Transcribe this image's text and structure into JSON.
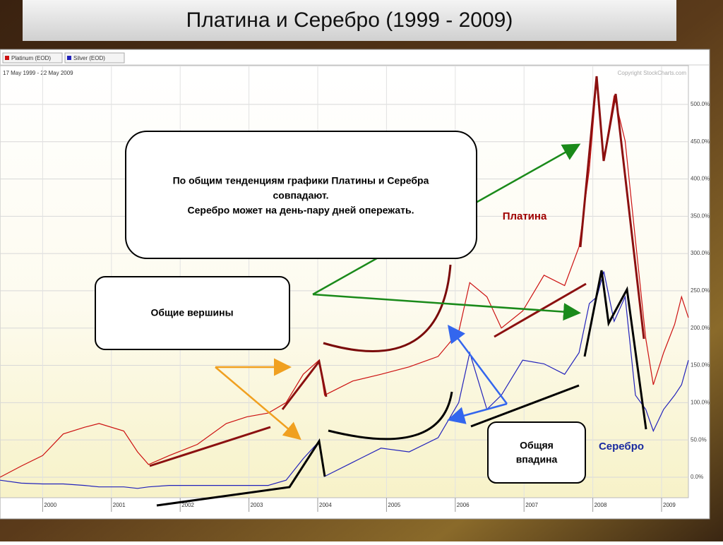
{
  "chart_data": {
    "type": "line",
    "title": "Платина и Серебро (1999 - 2009)",
    "date_range": "17 May 1999 - 22 May 2009",
    "copyright": "Copyright StockCharts.com",
    "legend": "top-left",
    "grid": true,
    "x": [
      1999.38,
      1999.69,
      2000.0,
      2000.3,
      2000.61,
      2000.82,
      2001.18,
      2001.38,
      2001.54,
      2001.84,
      2002.25,
      2002.67,
      2002.97,
      2003.28,
      2003.54,
      2003.79,
      2004.02,
      2004.1,
      2004.51,
      2004.92,
      2005.33,
      2005.75,
      2006.05,
      2006.21,
      2006.46,
      2006.67,
      2006.98,
      2007.29,
      2007.59,
      2007.8,
      2007.95,
      2008.06,
      2008.16,
      2008.31,
      2008.47,
      2008.62,
      2008.77,
      2008.88,
      2009.03,
      2009.19,
      2009.29,
      2009.39
    ],
    "series": [
      {
        "name": "Platinum (EOD)",
        "color": "#cc1010",
        "values": [
          0,
          15,
          29,
          58,
          67,
          72,
          62,
          34,
          17,
          29,
          44,
          72,
          81,
          86,
          100,
          138,
          157,
          110,
          129,
          138,
          148,
          162,
          195,
          261,
          242,
          200,
          223,
          271,
          257,
          309,
          413,
          536,
          427,
          512,
          451,
          318,
          186,
          124,
          167,
          205,
          242,
          214
        ]
      },
      {
        "name": "Silver (EOD)",
        "color": "#2222bb",
        "values": [
          -4,
          -8,
          -9,
          -9,
          -11,
          -13,
          -13,
          -15,
          -13,
          -11,
          -11,
          -11,
          -11,
          -11,
          -4,
          25,
          48,
          1,
          20,
          39,
          34,
          53,
          100,
          167,
          91,
          110,
          157,
          152,
          138,
          167,
          233,
          242,
          276,
          209,
          242,
          110,
          91,
          62,
          91,
          110,
          124,
          157
        ]
      }
    ],
    "xlim": [
      1999.38,
      2009.39
    ],
    "xticks": [
      2000,
      2001,
      2002,
      2003,
      2004,
      2005,
      2006,
      2007,
      2008,
      2009
    ],
    "ylim": [
      -27.5,
      552
    ],
    "yticks": [
      {
        "value": 0,
        "label": "0.0%"
      },
      {
        "value": 50,
        "label": "50.0%"
      },
      {
        "value": 100,
        "label": "100.0%"
      },
      {
        "value": 150,
        "label": "150.0%"
      },
      {
        "value": 200,
        "label": "200.0%"
      },
      {
        "value": 250,
        "label": "250.0%"
      },
      {
        "value": 300,
        "label": "300.0%"
      },
      {
        "value": 350,
        "label": "350.0%"
      },
      {
        "value": 400,
        "label": "400.0%"
      },
      {
        "value": 450,
        "label": "450.0%"
      },
      {
        "value": 500,
        "label": "500.0%"
      }
    ],
    "annotations": {
      "summary": [
        "По общим тенденциям графики Платины и Серебра",
        "совпадают.",
        "Серебро может на день-пару дней опережать."
      ],
      "peaks": "Общие вершины",
      "trough": [
        "Общяя",
        "впадина"
      ],
      "platinum_label": "Платина",
      "silver_label": "Серебро"
    }
  }
}
